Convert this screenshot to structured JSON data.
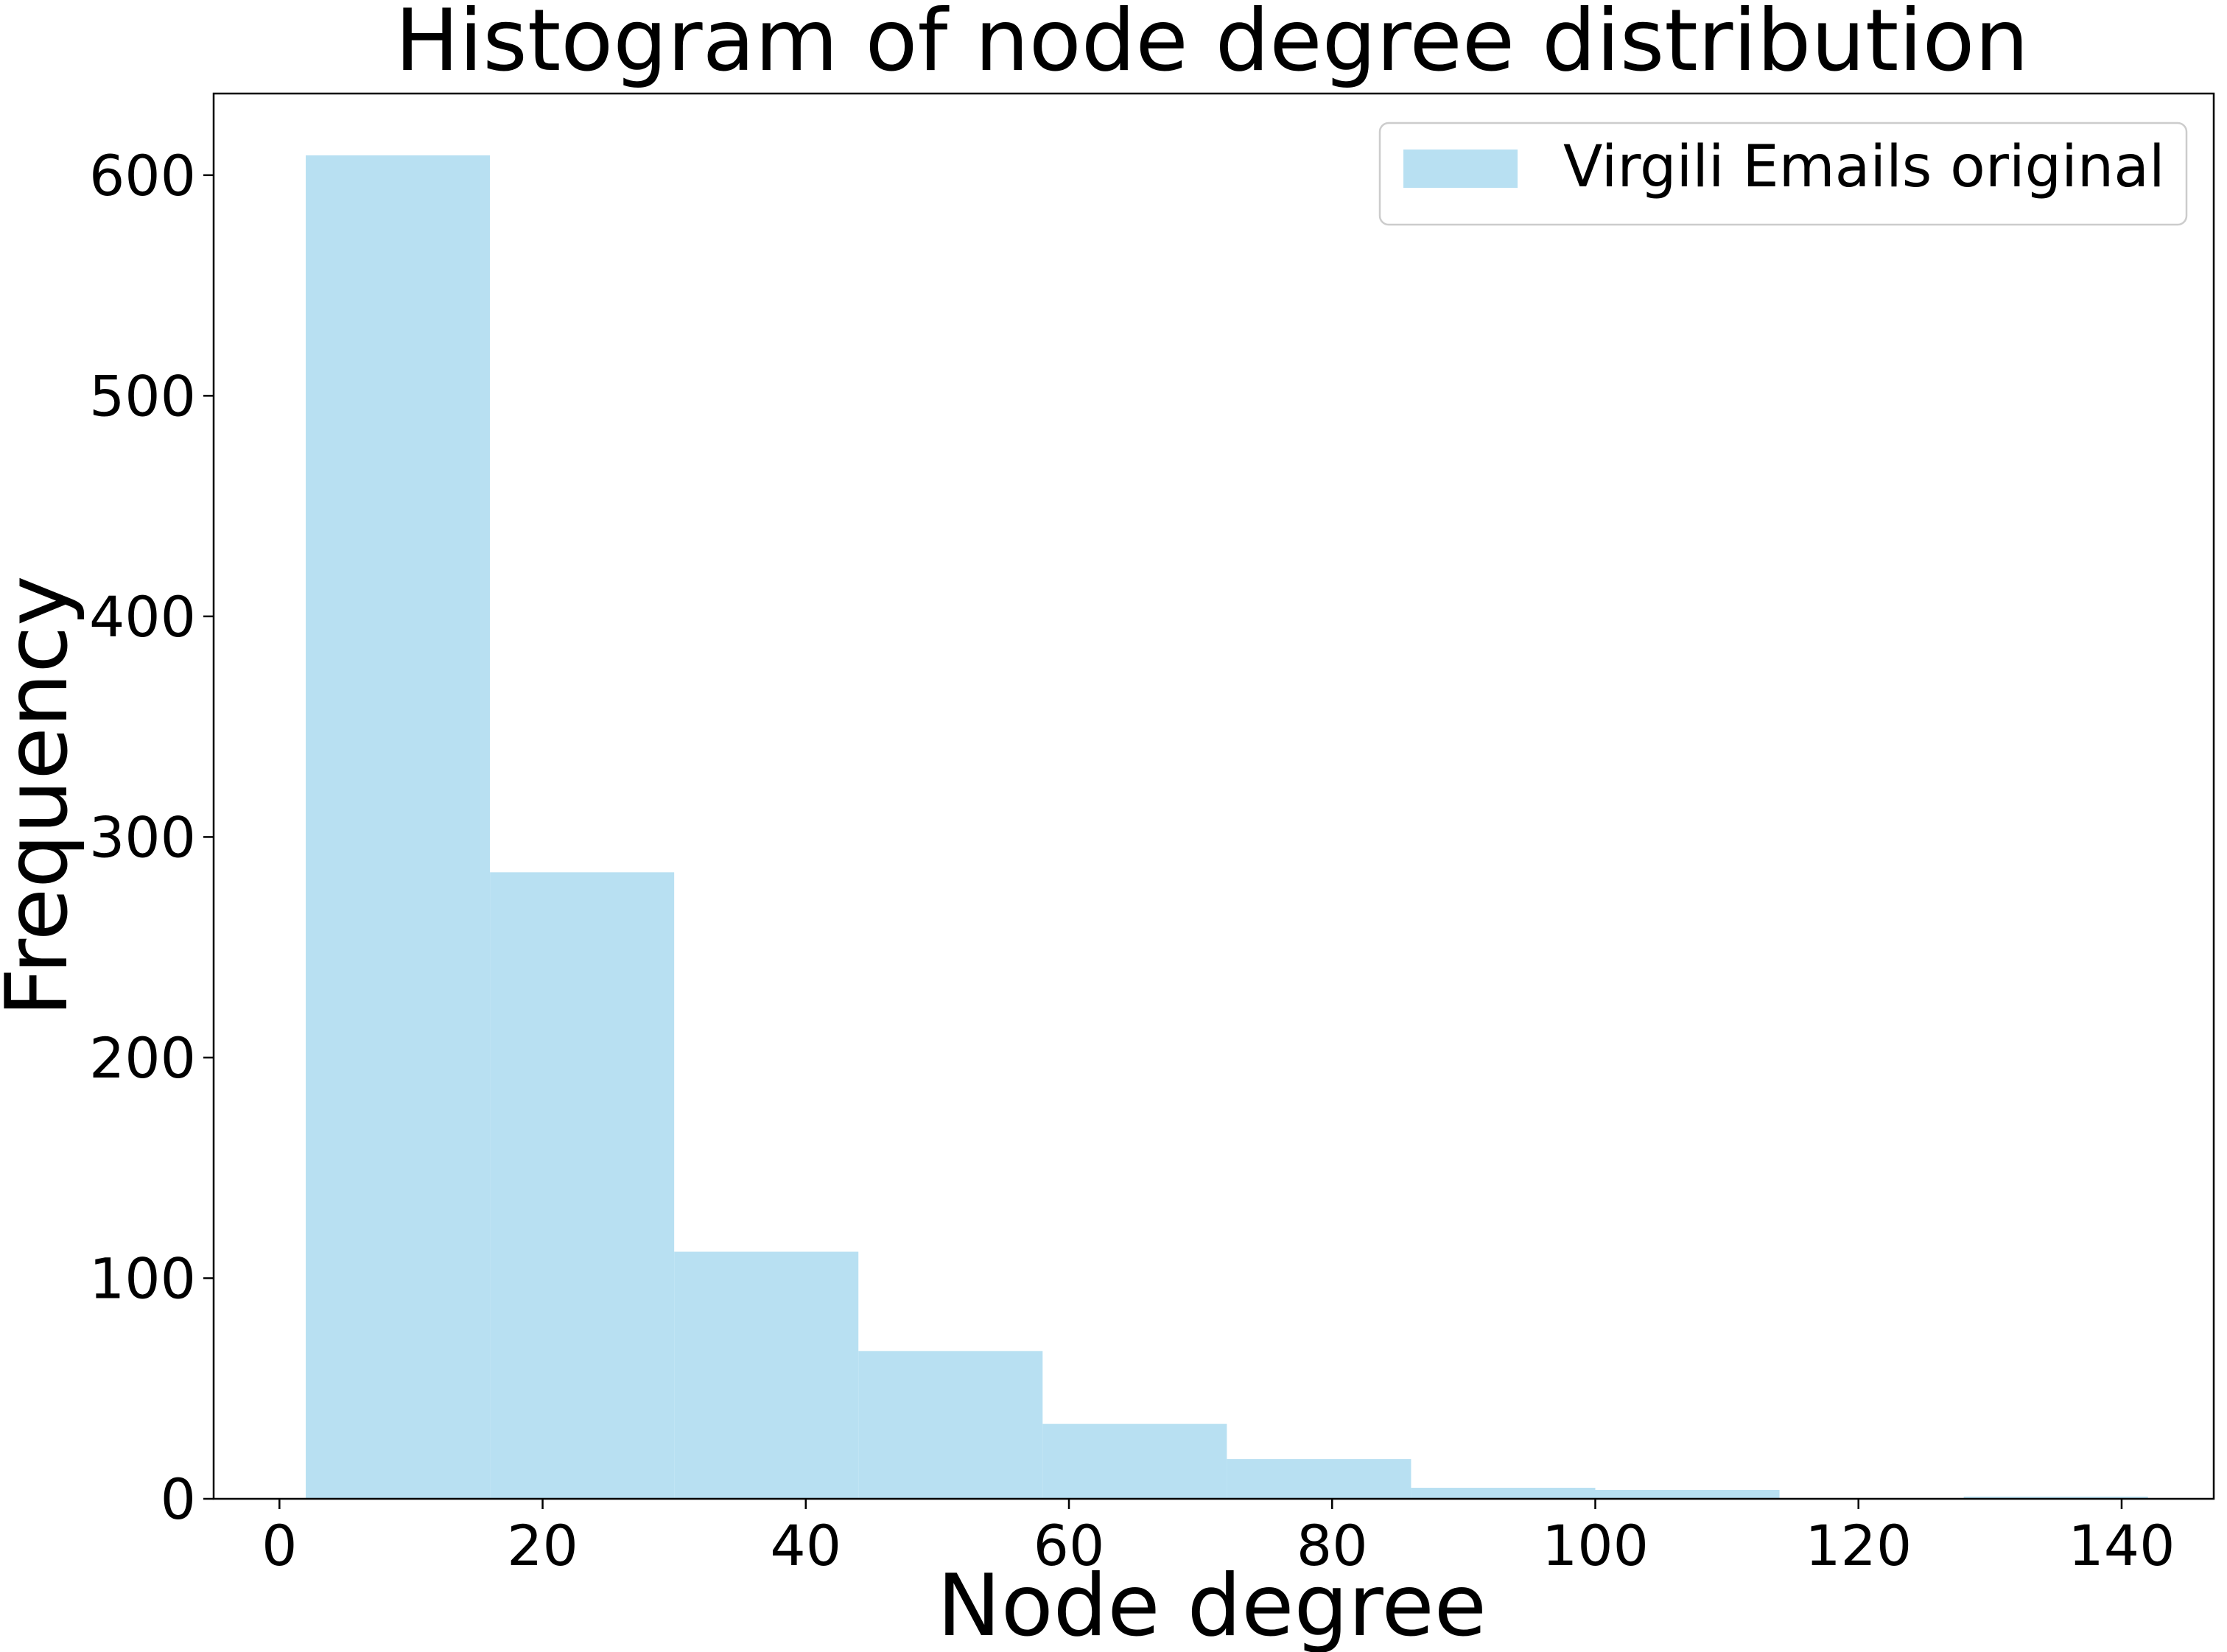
{
  "chart_data": {
    "type": "bar",
    "title": "Histogram of node degree distribution",
    "xlabel": "Node degree",
    "ylabel": "Frequency",
    "xlim": [
      -5,
      147
    ],
    "ylim": [
      0,
      637
    ],
    "x_ticks": [
      0,
      20,
      40,
      60,
      80,
      100,
      120,
      140
    ],
    "y_ticks": [
      0,
      100,
      200,
      300,
      400,
      500,
      600
    ],
    "bin_edges": [
      2,
      16,
      30,
      44,
      58,
      72,
      86,
      100,
      114,
      128,
      142
    ],
    "series": [
      {
        "name": "Virgili Emails original",
        "color": "#b8e0f2",
        "values": [
          609,
          284,
          112,
          67,
          34,
          18,
          5,
          4,
          0,
          1
        ]
      }
    ],
    "grid": false,
    "legend": "top-right"
  }
}
